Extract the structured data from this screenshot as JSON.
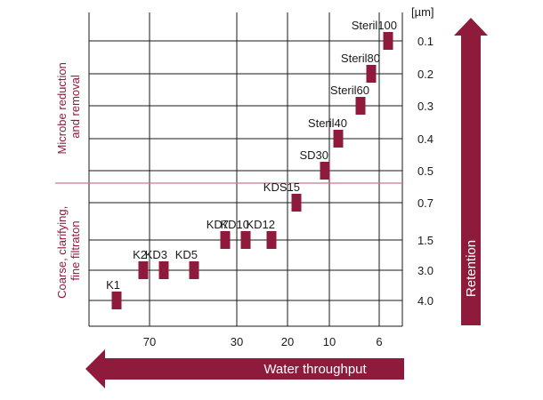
{
  "chart_data": {
    "type": "range-bar",
    "unit_label": "[µm]",
    "y_levels": [
      "0.1",
      "0.2",
      "0.3",
      "0.4",
      "0.5",
      "0.7",
      "1.5",
      "3.0",
      "4.0"
    ],
    "x_ticks": [
      "70",
      "30",
      "20",
      "10",
      "6"
    ],
    "products": [
      {
        "name": "K1",
        "level": "4.0"
      },
      {
        "name": "K2",
        "level": "3.0"
      },
      {
        "name": "KD3",
        "level": "3.0"
      },
      {
        "name": "KD5",
        "level": "3.0"
      },
      {
        "name": "KD7",
        "level": "1.5"
      },
      {
        "name": "KD10",
        "level": "1.5"
      },
      {
        "name": "KD12",
        "level": "1.5"
      },
      {
        "name": "KDS15",
        "level": "0.7"
      },
      {
        "name": "SD30",
        "level": "0.5"
      },
      {
        "name": "Steril40",
        "level": "0.4"
      },
      {
        "name": "Steril60",
        "level": "0.3"
      },
      {
        "name": "Steril80",
        "level": "0.2"
      },
      {
        "name": "Steril100",
        "level": "0.1"
      }
    ],
    "region_labels": {
      "upper": [
        "Microbe reduction",
        "and removal"
      ],
      "lower": [
        "Coarse, clarifying,",
        "fine filtraton"
      ]
    },
    "retention_label": "Retention",
    "throughput_label": "Water throughput"
  },
  "colors": {
    "accent": "#8e1b3c",
    "grid": "#1a1a1a",
    "separator": "#c77a8c",
    "text": "#1a1a1a"
  }
}
